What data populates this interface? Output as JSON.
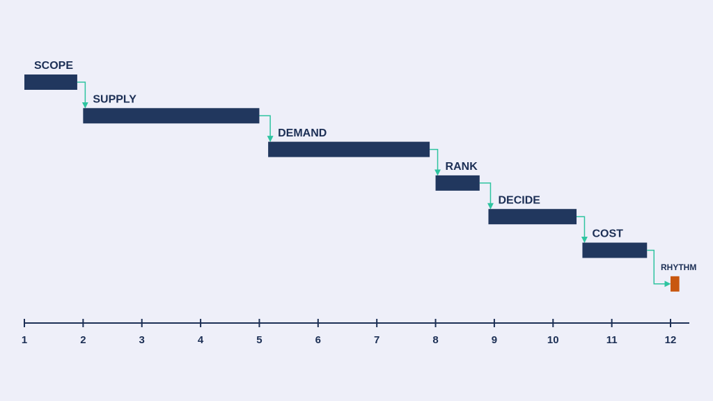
{
  "chart_data": {
    "type": "gantt",
    "tasks": [
      {
        "name": "SCOPE",
        "start": 1.0,
        "end": 1.9,
        "color": "#21375e"
      },
      {
        "name": "SUPPLY",
        "start": 2.0,
        "end": 5.0,
        "color": "#21375e"
      },
      {
        "name": "DEMAND",
        "start": 5.15,
        "end": 7.9,
        "color": "#21375e"
      },
      {
        "name": "RANK",
        "start": 8.0,
        "end": 8.75,
        "color": "#21375e"
      },
      {
        "name": "DECIDE",
        "start": 8.9,
        "end": 10.4,
        "color": "#21375e"
      },
      {
        "name": "COST",
        "start": 10.5,
        "end": 11.6,
        "color": "#21375e"
      },
      {
        "name": "RHYTHM",
        "start": 12.0,
        "end": 12.15,
        "color": "#c8570f"
      }
    ],
    "xlim": [
      1,
      12.32
    ],
    "xticks": [
      1,
      2,
      3,
      4,
      5,
      6,
      7,
      8,
      9,
      10,
      11,
      12
    ],
    "connector_color": "#2ec4a0"
  }
}
